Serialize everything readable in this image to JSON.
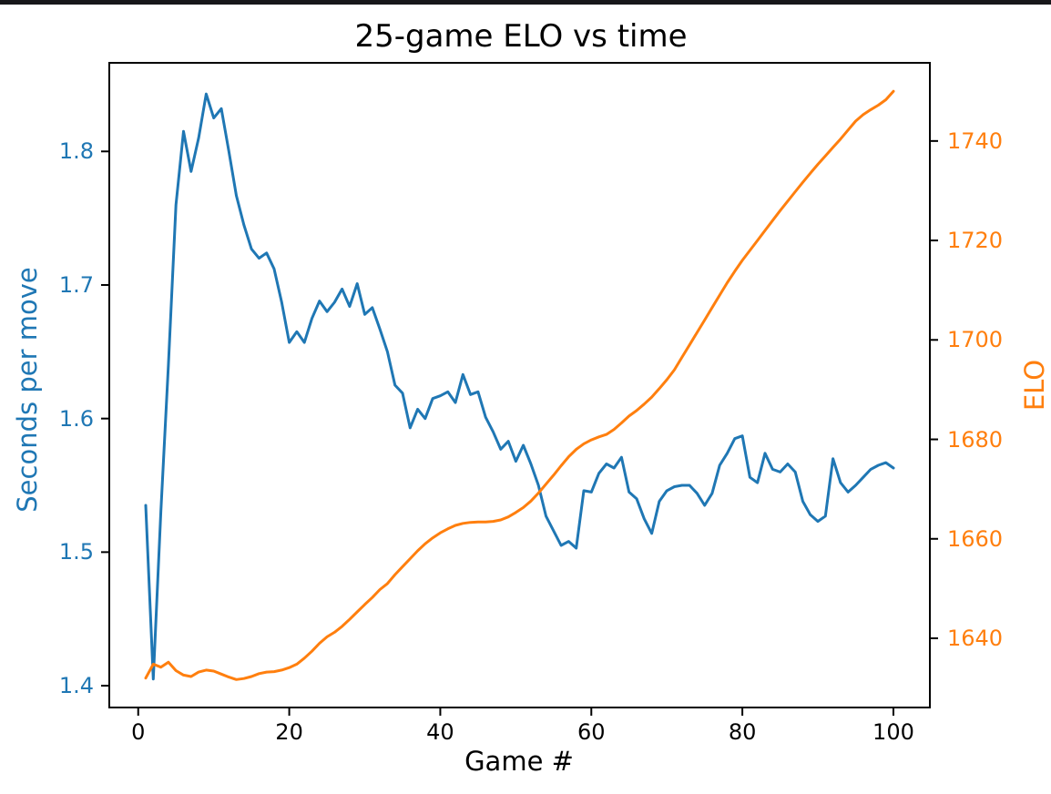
{
  "page": {
    "background_color": "#ffffff",
    "top_bar_color": "#17171a"
  },
  "chart_data": {
    "type": "line",
    "title": "25-game ELO vs time",
    "xlabel": "Game #",
    "ylabel_left": "Seconds per move",
    "ylabel_right": "ELO",
    "grid": false,
    "legend": "none",
    "x_start": 1,
    "x_step": 1,
    "x_range": [
      1,
      100
    ],
    "xlim": [
      -3.95,
      104.95
    ],
    "ylim_left": [
      1.383,
      1.867
    ],
    "ylim_right": [
      1625.9,
      1755.9
    ],
    "xtick_labels": [
      "0",
      "20",
      "40",
      "60",
      "80",
      "100"
    ],
    "xtick_values": [
      0,
      20,
      40,
      60,
      80,
      100
    ],
    "ytick_left_labels": [
      "1.4",
      "1.5",
      "1.6",
      "1.7",
      "1.8"
    ],
    "ytick_left_values": [
      1.4,
      1.5,
      1.6,
      1.7,
      1.8
    ],
    "ytick_right_labels": [
      "1640",
      "1660",
      "1680",
      "1700",
      "1720",
      "1740"
    ],
    "ytick_right_values": [
      1640,
      1660,
      1680,
      1700,
      1720,
      1740
    ],
    "colors": {
      "left_series": "#1f77b4",
      "right_series": "#ff7f0e",
      "axes": "#000000",
      "title": "#000000"
    },
    "series": [
      {
        "name": "Seconds per move",
        "axis": "left",
        "color": "#1f77b4",
        "values": [
          1.535,
          1.405,
          1.53,
          1.64,
          1.76,
          1.815,
          1.785,
          1.81,
          1.843,
          1.825,
          1.832,
          1.8,
          1.767,
          1.745,
          1.727,
          1.72,
          1.724,
          1.712,
          1.687,
          1.657,
          1.665,
          1.657,
          1.675,
          1.688,
          1.68,
          1.687,
          1.697,
          1.684,
          1.701,
          1.678,
          1.683,
          1.667,
          1.65,
          1.625,
          1.619,
          1.593,
          1.607,
          1.6,
          1.615,
          1.617,
          1.62,
          1.612,
          1.633,
          1.618,
          1.62,
          1.601,
          1.59,
          1.577,
          1.583,
          1.568,
          1.58,
          1.566,
          1.55,
          1.527,
          1.516,
          1.505,
          1.508,
          1.503,
          1.546,
          1.545,
          1.559,
          1.566,
          1.563,
          1.571,
          1.545,
          1.54,
          1.525,
          1.514,
          1.538,
          1.546,
          1.549,
          1.55,
          1.55,
          1.544,
          1.535,
          1.544,
          1.565,
          1.574,
          1.585,
          1.587,
          1.556,
          1.552,
          1.574,
          1.562,
          1.56,
          1.566,
          1.56,
          1.538,
          1.528,
          1.523,
          1.527,
          1.57,
          1.552,
          1.545,
          1.55,
          1.556,
          1.562,
          1.565,
          1.567,
          1.563
        ]
      },
      {
        "name": "ELO",
        "axis": "right",
        "color": "#ff7f0e",
        "values": [
          1632.0,
          1634.8,
          1634.2,
          1635.2,
          1633.5,
          1632.6,
          1632.3,
          1633.2,
          1633.6,
          1633.4,
          1632.8,
          1632.2,
          1631.7,
          1631.9,
          1632.3,
          1632.9,
          1633.2,
          1633.3,
          1633.6,
          1634.1,
          1634.8,
          1636.0,
          1637.4,
          1639.0,
          1640.3,
          1641.2,
          1642.4,
          1643.8,
          1645.3,
          1646.8,
          1648.2,
          1649.8,
          1651.0,
          1652.8,
          1654.4,
          1656.0,
          1657.6,
          1659.0,
          1660.2,
          1661.2,
          1662.0,
          1662.7,
          1663.1,
          1663.3,
          1663.4,
          1663.4,
          1663.5,
          1663.8,
          1664.4,
          1665.3,
          1666.3,
          1667.6,
          1669.2,
          1671.0,
          1672.8,
          1674.7,
          1676.5,
          1678.0,
          1679.1,
          1679.9,
          1680.5,
          1681.0,
          1682.0,
          1683.3,
          1684.7,
          1685.8,
          1687.1,
          1688.5,
          1690.2,
          1692.0,
          1694.0,
          1696.5,
          1699.0,
          1701.5,
          1704.0,
          1706.5,
          1709.0,
          1711.5,
          1713.8,
          1716.0,
          1718.0,
          1720.0,
          1722.0,
          1724.0,
          1726.0,
          1727.9,
          1729.8,
          1731.7,
          1733.5,
          1735.3,
          1737.0,
          1738.7,
          1740.4,
          1742.2,
          1744.0,
          1745.3,
          1746.3,
          1747.2,
          1748.3,
          1750.0
        ]
      }
    ]
  }
}
